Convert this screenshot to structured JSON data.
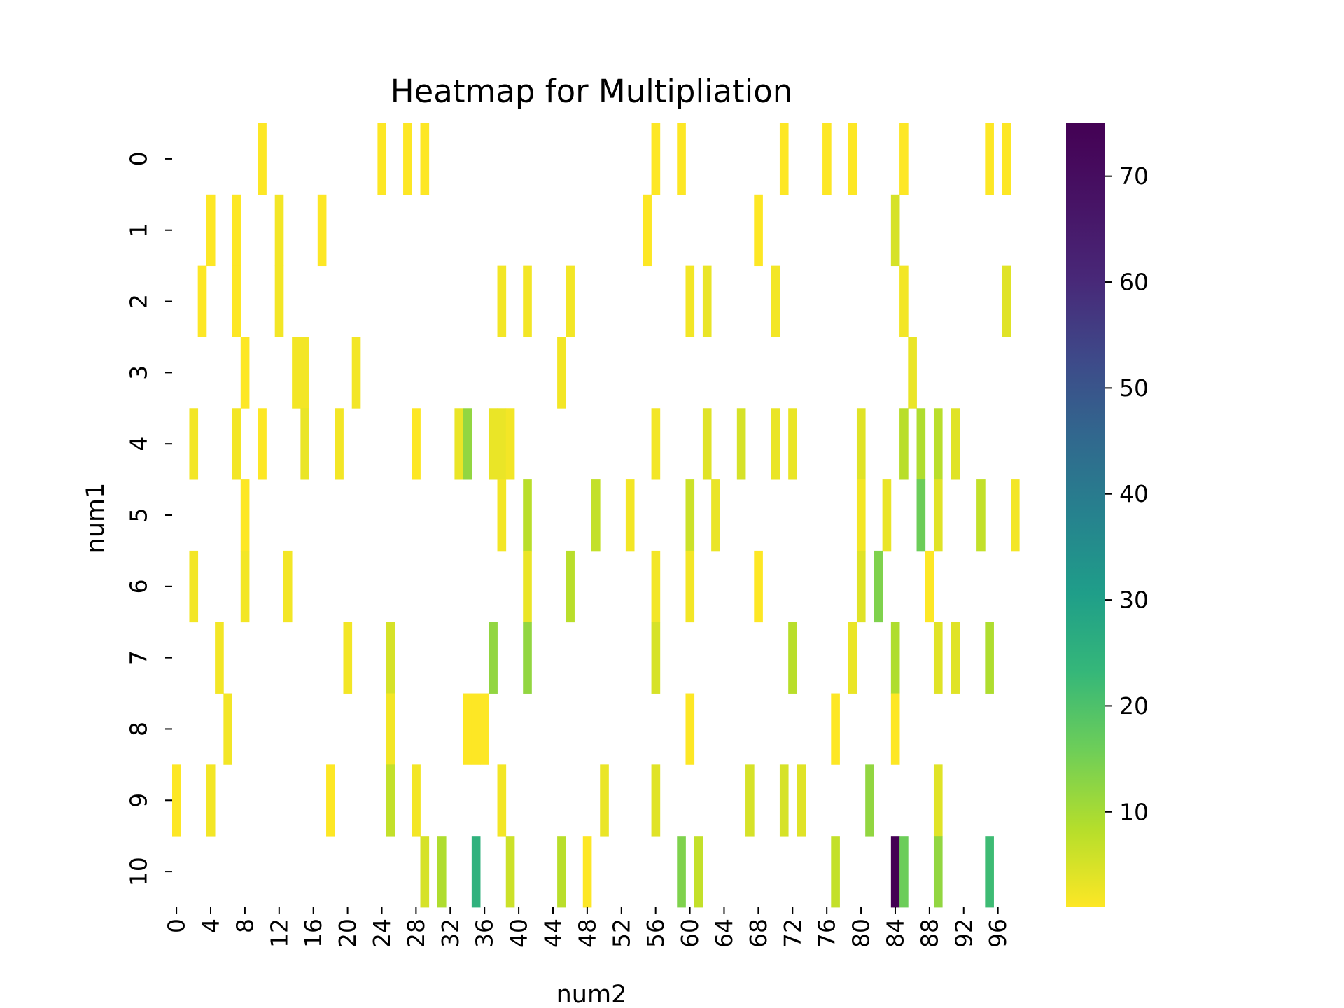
{
  "chart_data": {
    "type": "heatmap",
    "title": "Heatmap for Multipliation",
    "xlabel": "num2",
    "ylabel": "num1",
    "rows": [
      0,
      1,
      2,
      3,
      4,
      5,
      6,
      7,
      8,
      9,
      10
    ],
    "x_range": [
      0,
      97
    ],
    "x_ticks": [
      0,
      4,
      8,
      12,
      16,
      20,
      24,
      28,
      32,
      36,
      40,
      44,
      48,
      52,
      56,
      60,
      64,
      68,
      72,
      76,
      80,
      84,
      88,
      92,
      96
    ],
    "colorbar": {
      "colormap": "viridis_r",
      "range": [
        1,
        75
      ],
      "ticks": [
        10,
        20,
        30,
        40,
        50,
        60,
        70
      ]
    },
    "cells": [
      {
        "row": 0,
        "col": 10,
        "value": 1
      },
      {
        "row": 0,
        "col": 24,
        "value": 1
      },
      {
        "row": 0,
        "col": 27,
        "value": 1
      },
      {
        "row": 0,
        "col": 29,
        "value": 1
      },
      {
        "row": 0,
        "col": 56,
        "value": 1
      },
      {
        "row": 0,
        "col": 59,
        "value": 1
      },
      {
        "row": 0,
        "col": 71,
        "value": 1
      },
      {
        "row": 0,
        "col": 76,
        "value": 1
      },
      {
        "row": 0,
        "col": 79,
        "value": 1
      },
      {
        "row": 0,
        "col": 85,
        "value": 1
      },
      {
        "row": 0,
        "col": 95,
        "value": 1
      },
      {
        "row": 0,
        "col": 97,
        "value": 1
      },
      {
        "row": 1,
        "col": 4,
        "value": 1
      },
      {
        "row": 1,
        "col": 7,
        "value": 1
      },
      {
        "row": 1,
        "col": 12,
        "value": 2
      },
      {
        "row": 1,
        "col": 17,
        "value": 1
      },
      {
        "row": 1,
        "col": 55,
        "value": 1
      },
      {
        "row": 1,
        "col": 68,
        "value": 1
      },
      {
        "row": 1,
        "col": 84,
        "value": 5
      },
      {
        "row": 2,
        "col": 3,
        "value": 1
      },
      {
        "row": 2,
        "col": 7,
        "value": 1
      },
      {
        "row": 2,
        "col": 12,
        "value": 2
      },
      {
        "row": 2,
        "col": 38,
        "value": 2
      },
      {
        "row": 2,
        "col": 41,
        "value": 2
      },
      {
        "row": 2,
        "col": 46,
        "value": 2
      },
      {
        "row": 2,
        "col": 60,
        "value": 2
      },
      {
        "row": 2,
        "col": 62,
        "value": 3
      },
      {
        "row": 2,
        "col": 70,
        "value": 2
      },
      {
        "row": 2,
        "col": 85,
        "value": 2
      },
      {
        "row": 2,
        "col": 97,
        "value": 4
      },
      {
        "row": 3,
        "col": 8,
        "value": 1
      },
      {
        "row": 3,
        "col": 14,
        "value": 2
      },
      {
        "row": 3,
        "col": 15,
        "value": 2
      },
      {
        "row": 3,
        "col": 21,
        "value": 2
      },
      {
        "row": 3,
        "col": 45,
        "value": 2
      },
      {
        "row": 3,
        "col": 86,
        "value": 3
      },
      {
        "row": 4,
        "col": 2,
        "value": 2
      },
      {
        "row": 4,
        "col": 7,
        "value": 2
      },
      {
        "row": 4,
        "col": 10,
        "value": 1
      },
      {
        "row": 4,
        "col": 15,
        "value": 3
      },
      {
        "row": 4,
        "col": 19,
        "value": 2
      },
      {
        "row": 4,
        "col": 28,
        "value": 1
      },
      {
        "row": 4,
        "col": 33,
        "value": 3
      },
      {
        "row": 4,
        "col": 34,
        "value": 12
      },
      {
        "row": 4,
        "col": 37,
        "value": 3
      },
      {
        "row": 4,
        "col": 38,
        "value": 3
      },
      {
        "row": 4,
        "col": 39,
        "value": 2
      },
      {
        "row": 4,
        "col": 56,
        "value": 2
      },
      {
        "row": 4,
        "col": 62,
        "value": 4
      },
      {
        "row": 4,
        "col": 66,
        "value": 5
      },
      {
        "row": 4,
        "col": 70,
        "value": 3
      },
      {
        "row": 4,
        "col": 72,
        "value": 3
      },
      {
        "row": 4,
        "col": 80,
        "value": 4
      },
      {
        "row": 4,
        "col": 85,
        "value": 8
      },
      {
        "row": 4,
        "col": 87,
        "value": 9
      },
      {
        "row": 4,
        "col": 89,
        "value": 8
      },
      {
        "row": 4,
        "col": 91,
        "value": 4
      },
      {
        "row": 5,
        "col": 8,
        "value": 1
      },
      {
        "row": 5,
        "col": 38,
        "value": 2
      },
      {
        "row": 5,
        "col": 41,
        "value": 8
      },
      {
        "row": 5,
        "col": 49,
        "value": 7
      },
      {
        "row": 5,
        "col": 53,
        "value": 2
      },
      {
        "row": 5,
        "col": 60,
        "value": 6
      },
      {
        "row": 5,
        "col": 63,
        "value": 3
      },
      {
        "row": 5,
        "col": 80,
        "value": 2
      },
      {
        "row": 5,
        "col": 83,
        "value": 3
      },
      {
        "row": 5,
        "col": 87,
        "value": 16
      },
      {
        "row": 5,
        "col": 89,
        "value": 4
      },
      {
        "row": 5,
        "col": 94,
        "value": 7
      },
      {
        "row": 5,
        "col": 98,
        "value": 2
      },
      {
        "row": 6,
        "col": 2,
        "value": 2
      },
      {
        "row": 6,
        "col": 8,
        "value": 2
      },
      {
        "row": 6,
        "col": 13,
        "value": 2
      },
      {
        "row": 6,
        "col": 41,
        "value": 3
      },
      {
        "row": 6,
        "col": 46,
        "value": 8
      },
      {
        "row": 6,
        "col": 56,
        "value": 2
      },
      {
        "row": 6,
        "col": 60,
        "value": 2
      },
      {
        "row": 6,
        "col": 68,
        "value": 1
      },
      {
        "row": 6,
        "col": 80,
        "value": 4
      },
      {
        "row": 6,
        "col": 82,
        "value": 14
      },
      {
        "row": 6,
        "col": 88,
        "value": 1
      },
      {
        "row": 7,
        "col": 5,
        "value": 2
      },
      {
        "row": 7,
        "col": 20,
        "value": 2
      },
      {
        "row": 7,
        "col": 25,
        "value": 5
      },
      {
        "row": 7,
        "col": 37,
        "value": 12
      },
      {
        "row": 7,
        "col": 41,
        "value": 12
      },
      {
        "row": 7,
        "col": 56,
        "value": 5
      },
      {
        "row": 7,
        "col": 72,
        "value": 8
      },
      {
        "row": 7,
        "col": 79,
        "value": 3
      },
      {
        "row": 7,
        "col": 84,
        "value": 9
      },
      {
        "row": 7,
        "col": 89,
        "value": 4
      },
      {
        "row": 7,
        "col": 91,
        "value": 4
      },
      {
        "row": 7,
        "col": 95,
        "value": 9
      },
      {
        "row": 8,
        "col": 6,
        "value": 2
      },
      {
        "row": 8,
        "col": 25,
        "value": 2
      },
      {
        "row": 8,
        "col": 34,
        "value": 1
      },
      {
        "row": 8,
        "col": 35,
        "value": 1
      },
      {
        "row": 8,
        "col": 36,
        "value": 1
      },
      {
        "row": 8,
        "col": 60,
        "value": 1
      },
      {
        "row": 8,
        "col": 77,
        "value": 1
      },
      {
        "row": 8,
        "col": 84,
        "value": 1
      },
      {
        "row": 9,
        "col": 0,
        "value": 1
      },
      {
        "row": 9,
        "col": 4,
        "value": 2
      },
      {
        "row": 9,
        "col": 18,
        "value": 1
      },
      {
        "row": 9,
        "col": 25,
        "value": 7
      },
      {
        "row": 9,
        "col": 28,
        "value": 2
      },
      {
        "row": 9,
        "col": 38,
        "value": 2
      },
      {
        "row": 9,
        "col": 50,
        "value": 3
      },
      {
        "row": 9,
        "col": 56,
        "value": 4
      },
      {
        "row": 9,
        "col": 67,
        "value": 5
      },
      {
        "row": 9,
        "col": 71,
        "value": 5
      },
      {
        "row": 9,
        "col": 73,
        "value": 4
      },
      {
        "row": 9,
        "col": 81,
        "value": 12
      },
      {
        "row": 9,
        "col": 89,
        "value": 4
      },
      {
        "row": 10,
        "col": 29,
        "value": 5
      },
      {
        "row": 10,
        "col": 31,
        "value": 9
      },
      {
        "row": 10,
        "col": 35,
        "value": 25
      },
      {
        "row": 10,
        "col": 39,
        "value": 6
      },
      {
        "row": 10,
        "col": 45,
        "value": 8
      },
      {
        "row": 10,
        "col": 48,
        "value": 1
      },
      {
        "row": 10,
        "col": 59,
        "value": 14
      },
      {
        "row": 10,
        "col": 61,
        "value": 7
      },
      {
        "row": 10,
        "col": 77,
        "value": 7
      },
      {
        "row": 10,
        "col": 84,
        "value": 75
      },
      {
        "row": 10,
        "col": 85,
        "value": 16
      },
      {
        "row": 10,
        "col": 89,
        "value": 12
      },
      {
        "row": 10,
        "col": 95,
        "value": 22
      }
    ]
  }
}
